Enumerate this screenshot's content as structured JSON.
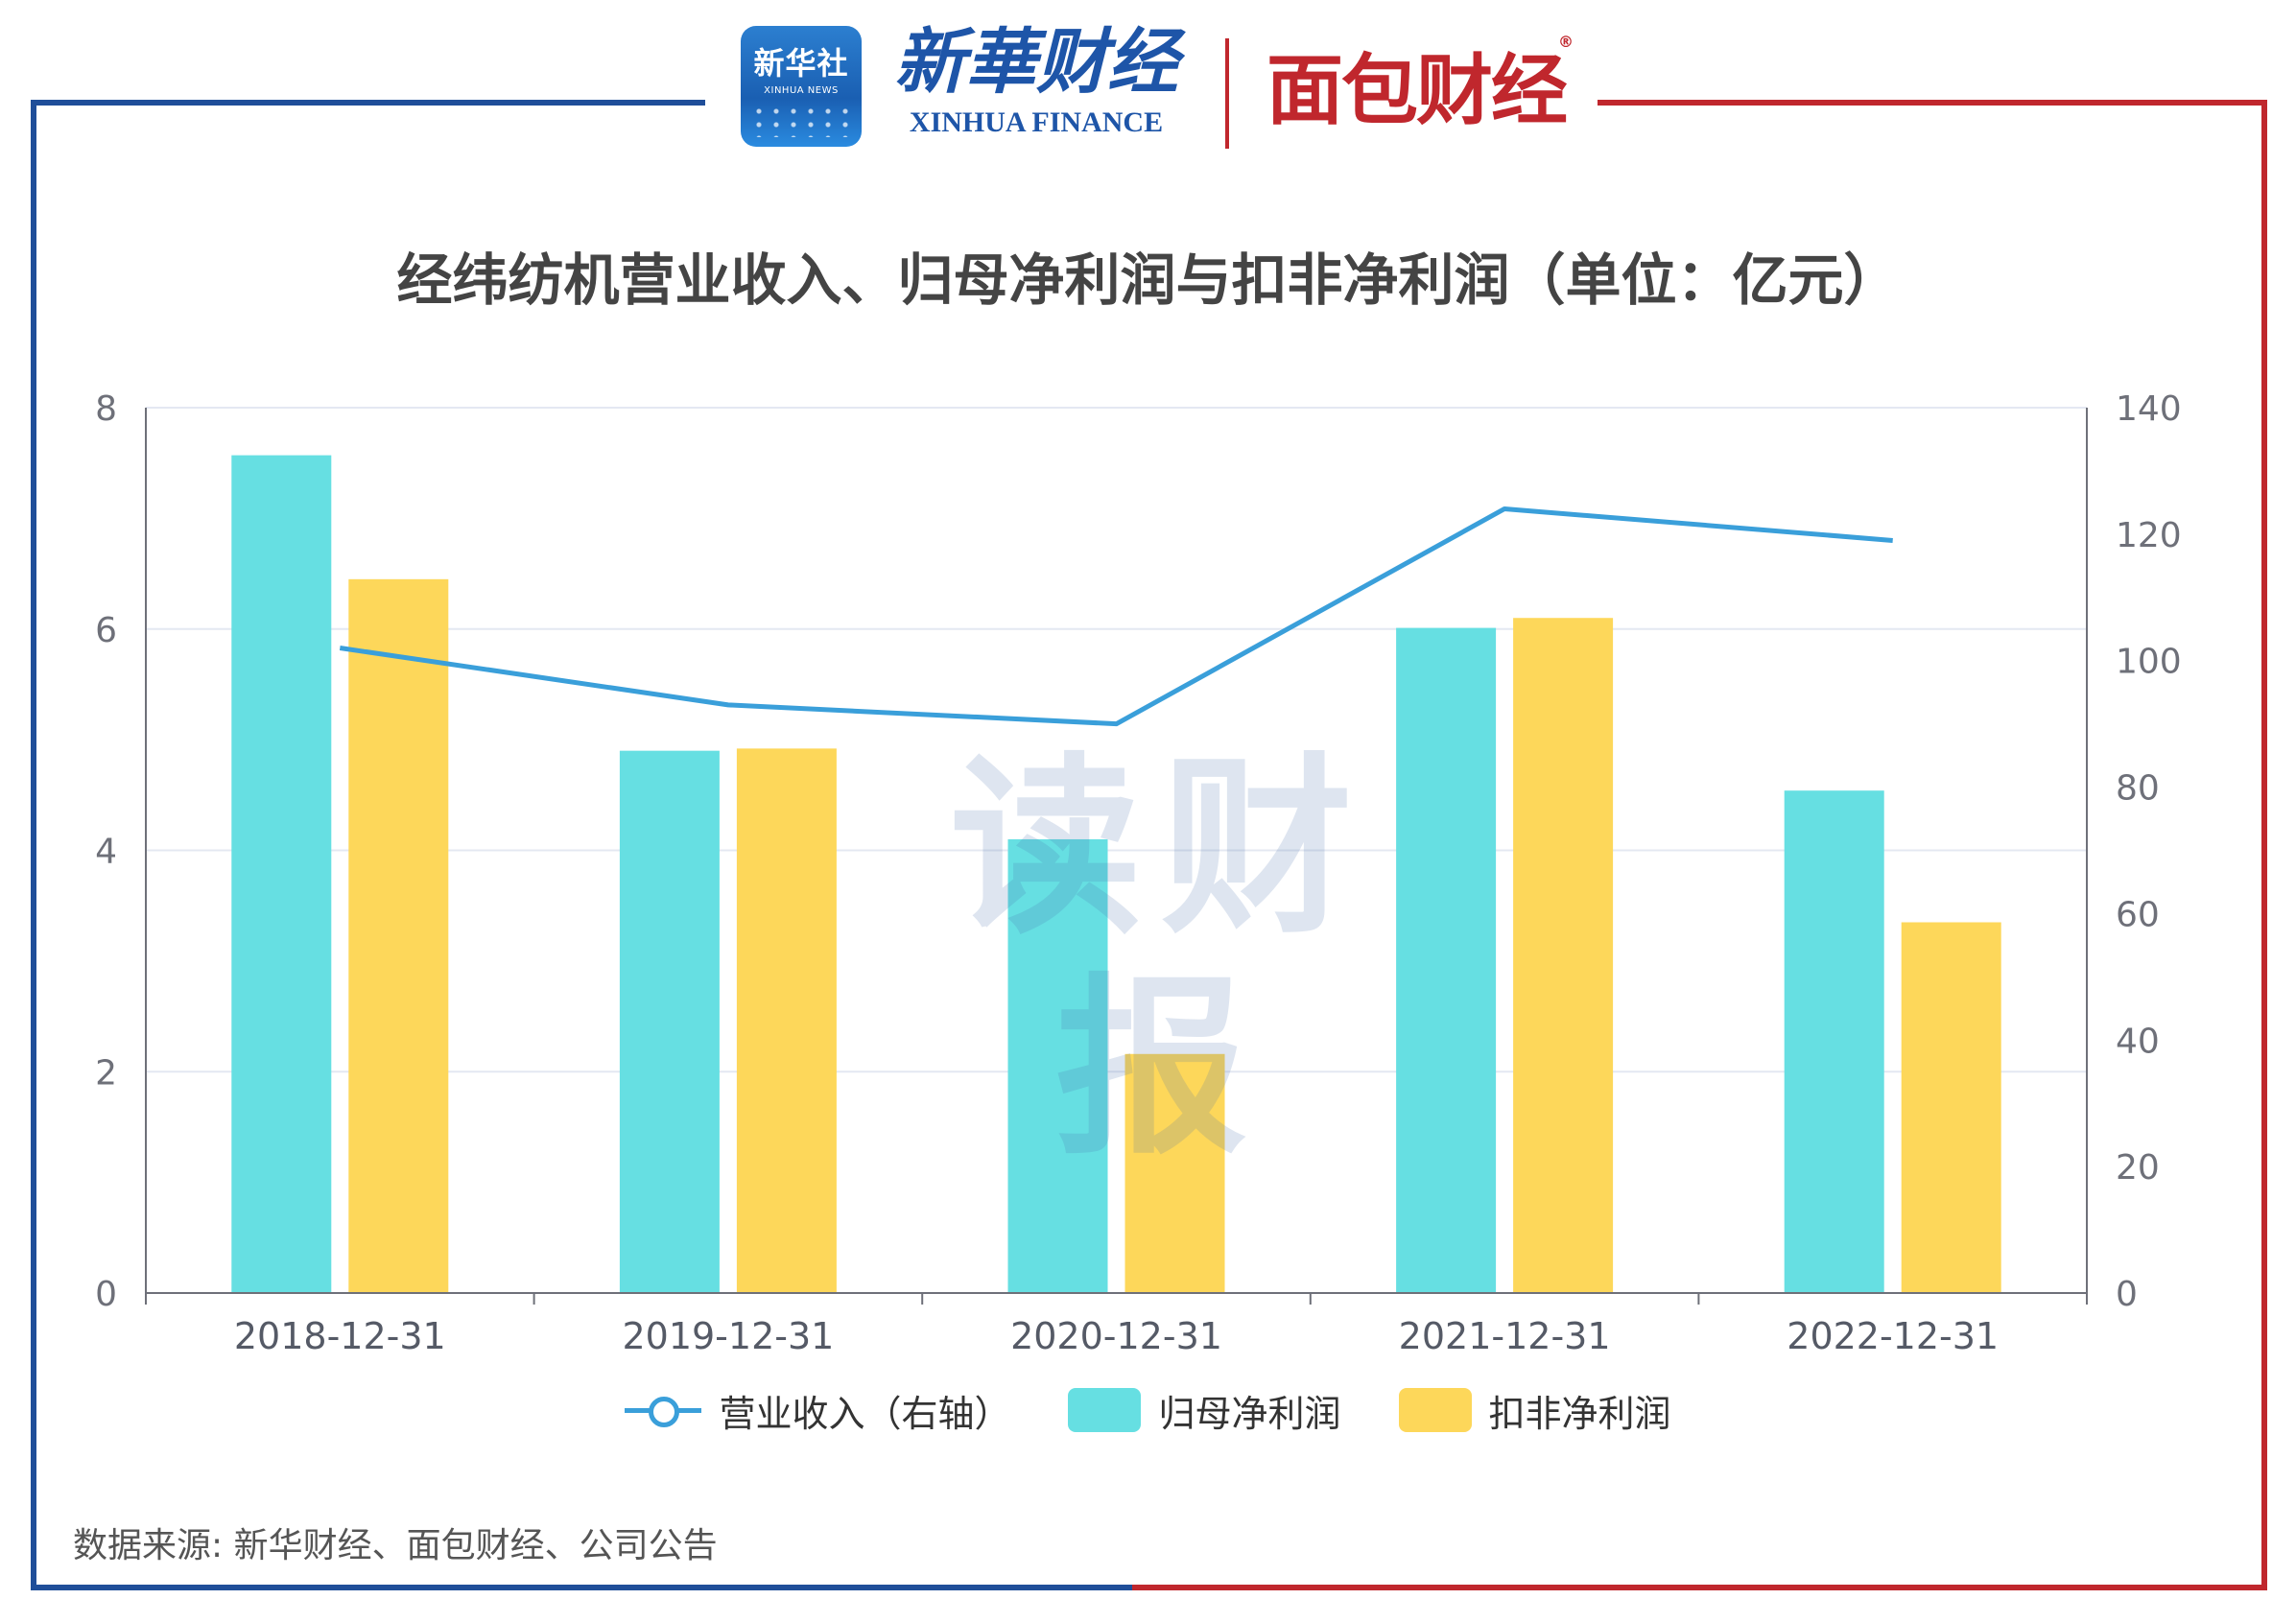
{
  "logos": {
    "xinhua_badge_main": "新华社",
    "xinhua_badge_sub": "XINHUA NEWS",
    "xinhua_finance_cn": "新華财经",
    "xinhua_finance_en": "XINHUA FINANCE",
    "mianbao_caijing": "面包财经",
    "registered_mark": "®"
  },
  "watermark": "读财报",
  "title": "经纬纺机营业收入、归母净利润与扣非净利润（单位：亿元）",
  "source": "数据来源: 新华财经、面包财经、公司公告",
  "colors": {
    "frame_left": "#1f4e99",
    "frame_right": "#c0272d",
    "revenue_line": "#3a9fda",
    "net_profit_bar": "#66dfe2",
    "deducted_profit_bar": "#fdd75a",
    "grid": "#e4e8f2",
    "axis": "#6e7079",
    "tick_text": "#6e7079"
  },
  "chart_data": {
    "type": "bar",
    "categories": [
      "2018-12-31",
      "2019-12-31",
      "2020-12-31",
      "2021-12-31",
      "2022-12-31"
    ],
    "series": [
      {
        "name": "营业收入（右轴）",
        "type": "line",
        "axis": "right",
        "values": [
          102,
          93,
          90,
          124,
          119
        ]
      },
      {
        "name": "归母净利润",
        "type": "bar",
        "axis": "left",
        "values": [
          7.57,
          4.9,
          4.1,
          6.01,
          4.54
        ]
      },
      {
        "name": "扣非净利润",
        "type": "bar",
        "axis": "left",
        "values": [
          6.45,
          4.92,
          2.16,
          6.1,
          3.35
        ]
      }
    ],
    "y_left": {
      "min": 0,
      "max": 8,
      "ticks": [
        0,
        2,
        4,
        6,
        8
      ]
    },
    "y_right": {
      "min": 0,
      "max": 140,
      "ticks": [
        0,
        20,
        40,
        60,
        80,
        100,
        120,
        140
      ]
    },
    "grid": true,
    "legend_position": "bottom-center"
  }
}
